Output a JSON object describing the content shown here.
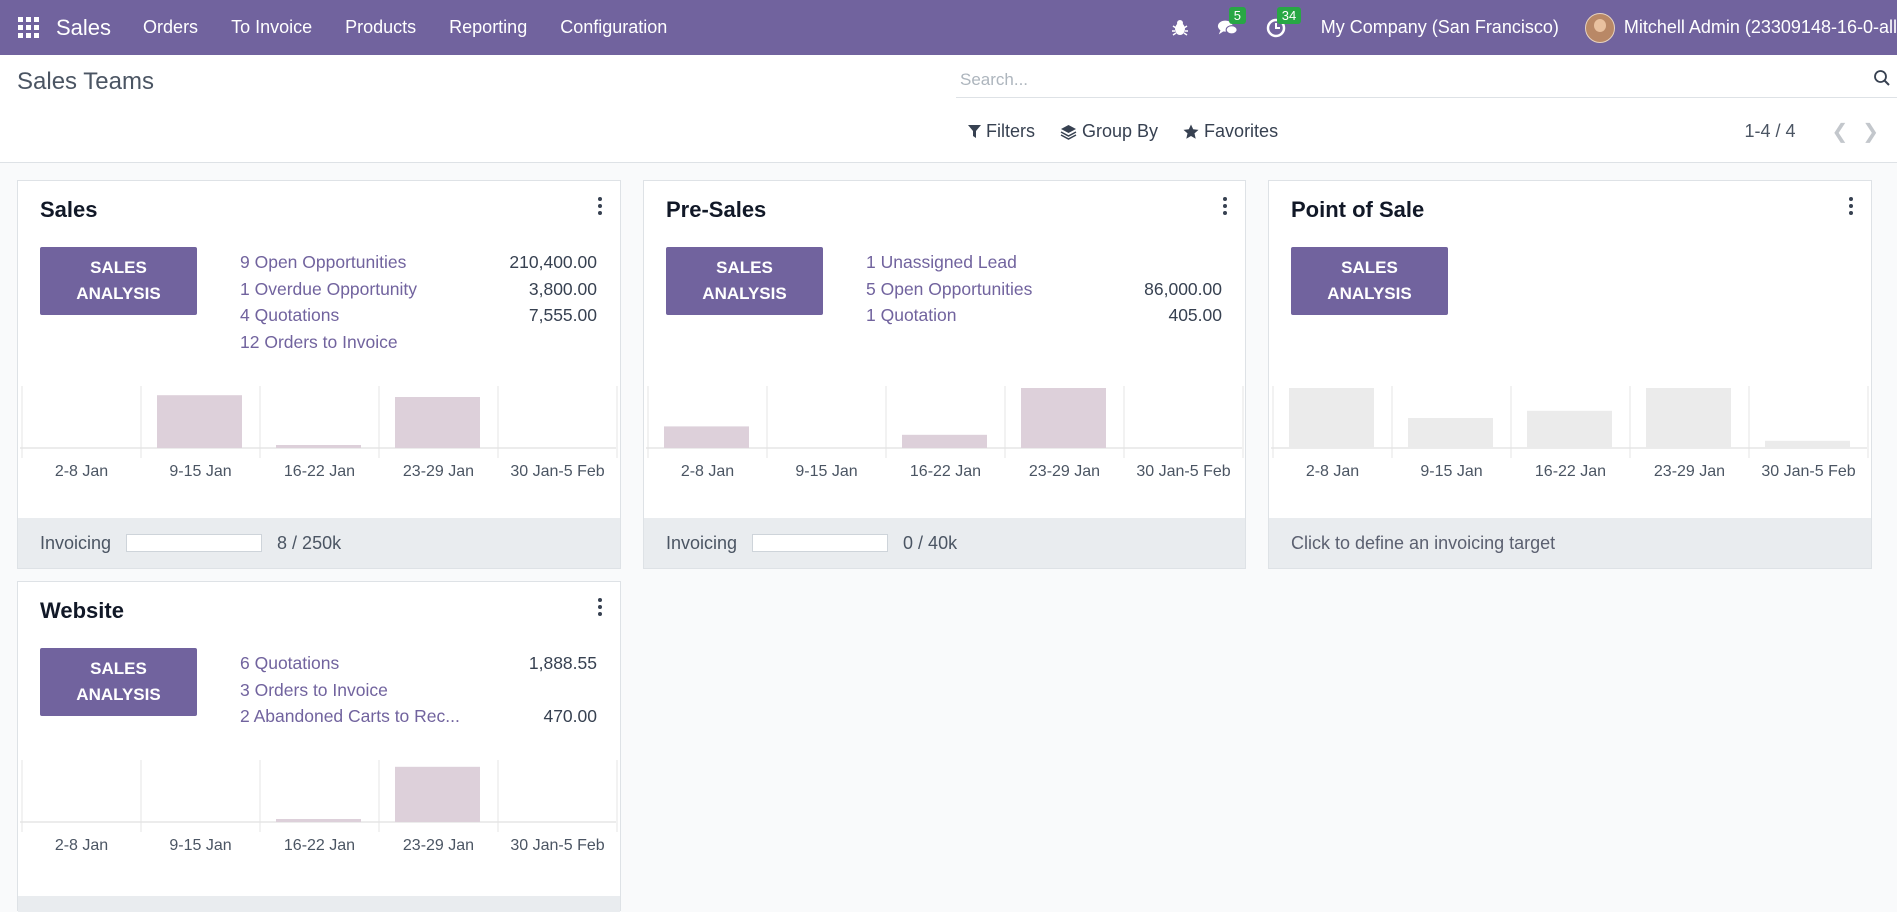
{
  "nav": {
    "brand": "Sales",
    "menu": [
      "Orders",
      "To Invoice",
      "Products",
      "Reporting",
      "Configuration"
    ],
    "messages_count": "5",
    "activities_count": "34",
    "company": "My Company (San Francisco)",
    "user": "Mitchell Admin (23309148-16-0-all"
  },
  "control": {
    "title": "Sales Teams",
    "search_placeholder": "Search...",
    "filters": "Filters",
    "group_by": "Group By",
    "favorites": "Favorites",
    "pager": "1-4 / 4"
  },
  "cards": [
    {
      "title": "Sales",
      "button": [
        "SALES",
        "ANALYSIS"
      ],
      "stats": [
        {
          "label": "9 Open Opportunities",
          "value": "210,400.00"
        },
        {
          "label": "1 Overdue Opportunity",
          "value": "3,800.00"
        },
        {
          "label": "4 Quotations",
          "value": "7,555.00"
        },
        {
          "label": "12 Orders to Invoice",
          "value": ""
        }
      ],
      "footer_label": "Invoicing",
      "footer_value": "8 / 250k",
      "footer_progress": 0.0
    },
    {
      "title": "Pre-Sales",
      "button": [
        "SALES",
        "ANALYSIS"
      ],
      "stats": [
        {
          "label": "1 Unassigned Lead",
          "value": ""
        },
        {
          "label": "5 Open Opportunities",
          "value": "86,000.00"
        },
        {
          "label": "1 Quotation",
          "value": "405.00"
        }
      ],
      "footer_label": "Invoicing",
      "footer_value": "0 / 40k",
      "footer_progress": 0.0
    },
    {
      "title": "Point of Sale",
      "button": [
        "SALES",
        "ANALYSIS"
      ],
      "stats": [],
      "footer_link": "Click to define an invoicing target"
    },
    {
      "title": "Website",
      "button": [
        "SALES",
        "ANALYSIS"
      ],
      "stats": [
        {
          "label": "6 Quotations",
          "value": "1,888.55"
        },
        {
          "label": "3 Orders to Invoice",
          "value": ""
        },
        {
          "label": "2  Abandoned Carts to Rec...",
          "value": "470.00"
        }
      ]
    }
  ],
  "chart_data": [
    {
      "type": "bar",
      "categories": [
        "2-8 Jan",
        "9-15 Jan",
        "16-22 Jan",
        "23-29 Jan",
        "30 Jan-5 Feb"
      ],
      "values": [
        0,
        0.88,
        0.05,
        0.85,
        0
      ],
      "color": "#ddd0da"
    },
    {
      "type": "bar",
      "categories": [
        "2-8 Jan",
        "9-15 Jan",
        "16-22 Jan",
        "23-29 Jan",
        "30 Jan-5 Feb"
      ],
      "values": [
        0.36,
        0,
        0.22,
        1.0,
        0
      ],
      "color": "#ddd0da"
    },
    {
      "type": "bar",
      "categories": [
        "2-8 Jan",
        "9-15 Jan",
        "16-22 Jan",
        "23-29 Jan",
        "30 Jan-5 Feb"
      ],
      "values": [
        1.0,
        0.5,
        0.62,
        1.0,
        0.12
      ],
      "color": "#ebebeb"
    },
    {
      "type": "bar",
      "categories": [
        "2-8 Jan",
        "9-15 Jan",
        "16-22 Jan",
        "23-29 Jan",
        "30 Jan-5 Feb"
      ],
      "values": [
        0,
        0,
        0.05,
        0.92,
        0
      ],
      "color": "#ddd0da"
    }
  ]
}
